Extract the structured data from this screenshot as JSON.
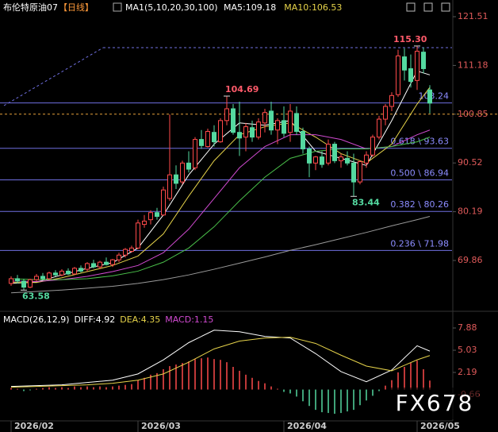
{
  "chart_data": [
    {
      "type": "candlestick",
      "title": "布伦特原油07",
      "period": "【日线】",
      "indicator": "MA1(5,10,20,30,100)",
      "legend": [
        {
          "text": "MA5:109.18",
          "color": "#ffffff"
        },
        {
          "text": "MA10:106.53",
          "color": "#e6d34a"
        }
      ],
      "up_color": "#ff4a4a",
      "down_color": "#54d9a0",
      "ylim": [
        60.27,
        123.7
      ],
      "yticks": [
        121.51,
        111.18,
        100.85,
        90.52,
        80.19,
        69.86
      ],
      "price_line": 100.85,
      "xticks": [
        {
          "value": 0,
          "label": "2026/02"
        },
        {
          "value": 20,
          "label": "2026/03"
        },
        {
          "value": 43,
          "label": "2026/04"
        },
        {
          "value": 64,
          "label": "2026/05"
        }
      ],
      "candles": [
        [
          65,
          66.5,
          64.5,
          66
        ],
        [
          66,
          66.8,
          65,
          65.5
        ],
        [
          65.5,
          66,
          63.58,
          64.2
        ],
        [
          64.2,
          66,
          64,
          65.8
        ],
        [
          65.8,
          67,
          65.5,
          66.5
        ],
        [
          66.5,
          67.2,
          65.8,
          66
        ],
        [
          66,
          67.5,
          65.8,
          67.2
        ],
        [
          67.2,
          67.8,
          66.5,
          66.8
        ],
        [
          66.8,
          68,
          66.5,
          67.6
        ],
        [
          67.6,
          68.2,
          66.8,
          67
        ],
        [
          67,
          68.5,
          66.8,
          68.2
        ],
        [
          68.2,
          68.8,
          67.3,
          67.6
        ],
        [
          68,
          69.5,
          67.5,
          69.2
        ],
        [
          69.2,
          70,
          68.2,
          68.5
        ],
        [
          68.5,
          69.8,
          68,
          69.5
        ],
        [
          69.5,
          70.5,
          68.8,
          69
        ],
        [
          69,
          70.2,
          68.5,
          70
        ],
        [
          70,
          71.5,
          69.5,
          71
        ],
        [
          71,
          72.5,
          70.5,
          72.2
        ],
        [
          71.8,
          73,
          71.5,
          72.5
        ],
        [
          72.5,
          78.5,
          72.3,
          77.8
        ],
        [
          77.5,
          79.5,
          76.8,
          78.2
        ],
        [
          78.5,
          80.5,
          77.5,
          80
        ],
        [
          80,
          81,
          78.5,
          79.2
        ],
        [
          79.5,
          85.5,
          79.3,
          84.8
        ],
        [
          83,
          100.8,
          82.5,
          88
        ],
        [
          88,
          90,
          85,
          86.2
        ],
        [
          86.5,
          91,
          86,
          90.5
        ],
        [
          90.5,
          93,
          88.5,
          89.2
        ],
        [
          89.5,
          96,
          89,
          95.5
        ],
        [
          95.5,
          97.5,
          93.5,
          94.2
        ],
        [
          94,
          97.8,
          93.8,
          97.2
        ],
        [
          97,
          98.5,
          94,
          95
        ],
        [
          95,
          100,
          94.8,
          99.5
        ],
        [
          99.5,
          104.69,
          98.5,
          102
        ],
        [
          102,
          103,
          96.5,
          97
        ],
        [
          97,
          103.5,
          92,
          95.8
        ],
        [
          96,
          99,
          93,
          98.2
        ],
        [
          98,
          99.5,
          95,
          96
        ],
        [
          96,
          100,
          95.5,
          99.2
        ],
        [
          99,
          102,
          97,
          101.2
        ],
        [
          101.5,
          103.5,
          96.5,
          97.5
        ],
        [
          97.5,
          100,
          94.5,
          99.5
        ],
        [
          99.5,
          102.5,
          96,
          96.8
        ],
        [
          97,
          103,
          95,
          101.5
        ],
        [
          101,
          102.5,
          96.5,
          97.2
        ],
        [
          97.2,
          98,
          92.5,
          93.5
        ],
        [
          93.5,
          94,
          87.5,
          90.5
        ],
        [
          90.5,
          92,
          89,
          91.8
        ],
        [
          91.8,
          93,
          89.5,
          90.2
        ],
        [
          90.5,
          95.5,
          90,
          94.5
        ],
        [
          94.5,
          95,
          90.5,
          91
        ],
        [
          91,
          92.5,
          89.5,
          91.8
        ],
        [
          91.5,
          93,
          90,
          90.5
        ],
        [
          90.5,
          92.5,
          83.44,
          86.5
        ],
        [
          86.5,
          91,
          86,
          90.8
        ],
        [
          90.5,
          93,
          89.5,
          92.2
        ],
        [
          92.2,
          96.5,
          91.8,
          96
        ],
        [
          96,
          100.5,
          95.5,
          99.8
        ],
        [
          99.8,
          103,
          98.5,
          102.5
        ],
        [
          102.5,
          105.5,
          101.5,
          104.8
        ],
        [
          105,
          114.5,
          104.5,
          113.2
        ],
        [
          113,
          114.8,
          108,
          110.2
        ],
        [
          110.5,
          113.5,
          106.5,
          107.8
        ],
        [
          108,
          115.3,
          106,
          114.2
        ],
        [
          114,
          115,
          109.5,
          110.5
        ],
        [
          106,
          107,
          101,
          103.2
        ]
      ],
      "ma_lines": [
        {
          "color": "#ffffff",
          "x": [
            0,
            4,
            8,
            12,
            16,
            20,
            24,
            28,
            32,
            36,
            40,
            44,
            48,
            52,
            56,
            60,
            64,
            66
          ],
          "values": [
            65,
            65.3,
            66.8,
            68.2,
            69.4,
            72.5,
            79.5,
            88,
            94.5,
            99,
            98.5,
            99.5,
            93,
            91.5,
            90,
            99.5,
            110,
            109.18
          ]
        },
        {
          "color": "#e6d34a",
          "x": [
            0,
            4,
            8,
            12,
            16,
            20,
            24,
            28,
            32,
            36,
            40,
            44,
            48,
            52,
            56,
            60,
            64,
            66
          ],
          "values": [
            65.2,
            65.2,
            66.2,
            67.5,
            68.8,
            70.8,
            75.5,
            83.5,
            91,
            96.5,
            98.2,
            99,
            96,
            92.5,
            90.5,
            94.5,
            103,
            106.53
          ]
        },
        {
          "color": "#d04ad0",
          "x": [
            0,
            4,
            8,
            12,
            16,
            20,
            24,
            28,
            32,
            36,
            40,
            44,
            48,
            52,
            56,
            60,
            64,
            66
          ],
          "values": [
            65.5,
            65.4,
            65.8,
            66.5,
            67.5,
            68.8,
            71.5,
            76.5,
            83,
            89.5,
            94,
            96.5,
            96.5,
            95.5,
            93.5,
            94,
            96.5,
            97.5
          ]
        },
        {
          "color": "#4ac04a",
          "x": [
            0,
            4,
            8,
            12,
            16,
            20,
            24,
            28,
            32,
            36,
            40,
            44,
            48,
            52,
            56,
            60,
            64,
            66
          ],
          "values": [
            66,
            65.8,
            65.8,
            66,
            66.6,
            67.6,
            69.5,
            72.5,
            77,
            82.5,
            87.5,
            91.5,
            93,
            93.5,
            93.5,
            94,
            95,
            96
          ]
        },
        {
          "color": "#9a9a9a",
          "x": [
            0,
            4,
            8,
            12,
            16,
            20,
            24,
            28,
            32,
            36,
            40,
            44,
            48,
            52,
            56,
            60,
            64,
            66
          ],
          "values": [
            63,
            63.3,
            63.6,
            64,
            64.4,
            65,
            65.8,
            66.8,
            68,
            69.3,
            70.6,
            72,
            73.2,
            74.5,
            75.8,
            77.2,
            78.5,
            79.2
          ]
        }
      ],
      "levels": [
        {
          "value": 103.24,
          "label": "103.24"
        },
        {
          "value": 93.63,
          "label": "0.618 \\ 93.63"
        },
        {
          "value": 86.94,
          "label": "0.500 \\ 86.94"
        },
        {
          "value": 80.26,
          "label": "0.382 \\ 80.26"
        },
        {
          "value": 71.98,
          "label": "0.236 \\ 71.98"
        }
      ],
      "annotations": [
        {
          "value": 115.3,
          "label": "115.30",
          "color": "#ff5a6a"
        },
        {
          "value": 104.69,
          "label": "104.69",
          "color": "#ff5a6a"
        },
        {
          "value": 83.44,
          "label": "83.44",
          "color": "#54d9a0"
        },
        {
          "value": 63.58,
          "label": "63.58",
          "color": "#54d9a0"
        }
      ],
      "watermark": "FX678"
    },
    {
      "type": "macd",
      "legend": [
        {
          "text": "MACD(26,12,9)",
          "color": "#ffffff"
        },
        {
          "text": "DIFF:4.92",
          "color": "#ffffff"
        },
        {
          "text": "DEA:4.35",
          "color": "#e6d34a"
        },
        {
          "text": "MACD:1.15",
          "color": "#d04ad0"
        }
      ],
      "ylim": [
        -4.01,
        9.2
      ],
      "yticks": [
        7.88,
        5.03,
        2.19,
        -0.66
      ],
      "histogram": [
        0.2,
        0.1,
        -0.2,
        -0.1,
        0.1,
        0.2,
        0.3,
        0.2,
        0.3,
        0.2,
        0.4,
        0.3,
        0.4,
        0.3,
        0.4,
        0.3,
        0.4,
        0.5,
        0.6,
        0.7,
        1.2,
        1.5,
        1.9,
        2.1,
        2.6,
        3.0,
        3.2,
        3.4,
        3.6,
        3.9,
        4.0,
        4.1,
        3.9,
        3.8,
        3.5,
        2.9,
        2.4,
        1.9,
        1.5,
        1.1,
        0.8,
        0.4,
        0.1,
        -0.3,
        -0.5,
        -0.9,
        -1.5,
        -2.1,
        -2.6,
        -2.9,
        -3.0,
        -3.1,
        -3.0,
        -2.8,
        -2.6,
        -2.0,
        -1.4,
        -0.8,
        -0.2,
        0.5,
        1.2,
        2.2,
        2.9,
        3.4,
        3.7,
        2.6,
        1.15
      ],
      "lines": [
        {
          "color": "#ffffff",
          "x": [
            0,
            4,
            8,
            12,
            16,
            20,
            24,
            28,
            32,
            36,
            40,
            44,
            48,
            52,
            56,
            60,
            64,
            66
          ],
          "values": [
            0.4,
            0.5,
            0.6,
            0.9,
            1.2,
            2.0,
            3.8,
            6.0,
            7.6,
            7.4,
            6.8,
            6.6,
            4.6,
            2.3,
            1.0,
            2.5,
            5.6,
            4.92
          ]
        },
        {
          "color": "#e6d34a",
          "x": [
            0,
            4,
            8,
            12,
            16,
            20,
            24,
            28,
            32,
            36,
            40,
            44,
            48,
            52,
            56,
            60,
            64,
            66
          ],
          "values": [
            0.3,
            0.4,
            0.5,
            0.6,
            0.8,
            1.2,
            2.0,
            3.5,
            5.2,
            6.2,
            6.6,
            6.7,
            5.9,
            4.4,
            3.0,
            2.4,
            3.8,
            4.35
          ]
        }
      ]
    }
  ]
}
